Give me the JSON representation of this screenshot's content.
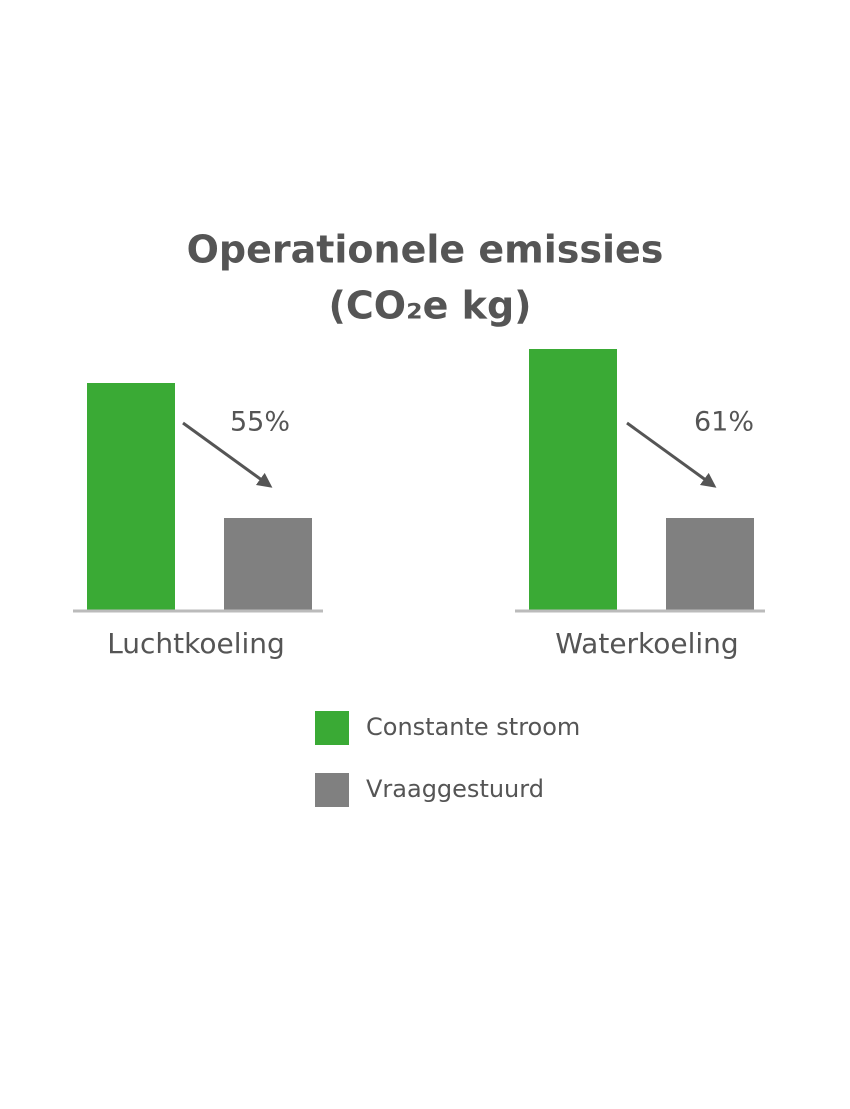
{
  "chart_data": {
    "type": "bar",
    "title": [
      "Operationele emissies",
      "(CO₂e kg)"
    ],
    "categories": [
      "Luchtkoeling",
      "Waterkoeling"
    ],
    "series": [
      {
        "name": "Constante stroom",
        "color": "#3aaa35",
        "values": [
          227,
          261
        ]
      },
      {
        "name": "Vraaggestuurd",
        "color": "#808080",
        "values": [
          92,
          92
        ]
      }
    ],
    "annotations": [
      "55%",
      "61%"
    ],
    "legend": "bottom"
  }
}
